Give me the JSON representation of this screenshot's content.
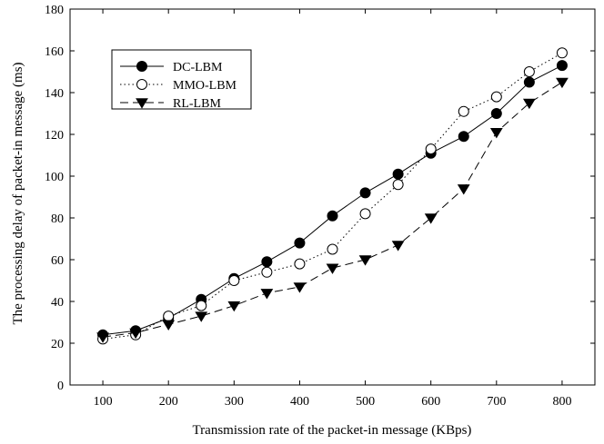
{
  "chart_data": {
    "type": "line",
    "title": "",
    "xlabel": "Transmission rate of the packet-in message (KBps)",
    "ylabel": "The processing delay of packet-in message (ms)",
    "xlim": [
      50,
      850
    ],
    "ylim": [
      0,
      180
    ],
    "x": [
      100,
      150,
      200,
      250,
      300,
      350,
      400,
      450,
      500,
      550,
      600,
      650,
      700,
      750,
      800
    ],
    "x_ticks": [
      "100",
      "200",
      "300",
      "400",
      "500",
      "600",
      "700",
      "800"
    ],
    "y_ticks": [
      "0",
      "20",
      "40",
      "60",
      "80",
      "100",
      "120",
      "140",
      "160",
      "180"
    ],
    "grid": false,
    "legend_position": "top-left",
    "series": [
      {
        "name": "DC-LBM",
        "line_style": "solid",
        "marker": "filled-circle",
        "values": [
          24,
          26,
          32,
          41,
          51,
          59,
          68,
          81,
          92,
          101,
          111,
          119,
          130,
          145,
          153
        ]
      },
      {
        "name": "MMO-LBM",
        "line_style": "dotted",
        "marker": "open-circle",
        "values": [
          22,
          24,
          33,
          38,
          50,
          54,
          58,
          65,
          82,
          96,
          113,
          131,
          138,
          150,
          159
        ]
      },
      {
        "name": "RL-LBM",
        "line_style": "dashed",
        "marker": "filled-triangle-down",
        "values": [
          23,
          25,
          29,
          33,
          38,
          44,
          47,
          56,
          60,
          67,
          80,
          94,
          121,
          135,
          145
        ]
      }
    ]
  }
}
